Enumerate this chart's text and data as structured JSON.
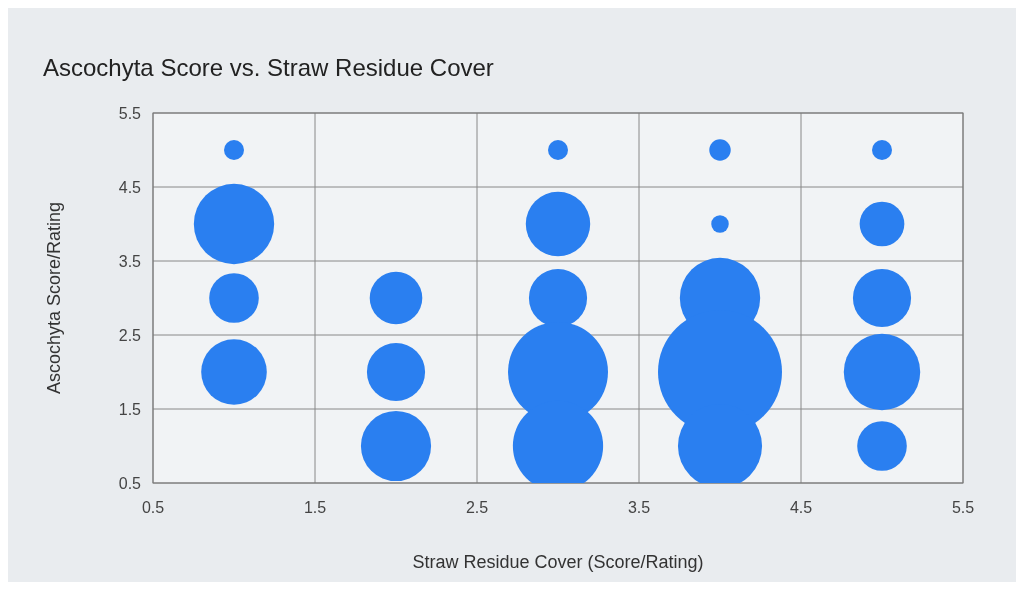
{
  "chart_data": {
    "type": "bubble",
    "title": "Ascochyta Score vs. Straw Residue Cover",
    "xlabel": "Straw Residue Cover (Score/Rating)",
    "ylabel": "Ascochyta Score/Rating",
    "x": [
      1,
      1,
      1,
      1,
      2,
      2,
      2,
      3,
      3,
      3,
      3,
      3,
      4,
      4,
      4,
      4,
      4,
      5,
      5,
      5,
      5,
      5
    ],
    "values": [
      5,
      4,
      3,
      2,
      3,
      2,
      1,
      5,
      4,
      3,
      2,
      1,
      5,
      4,
      3,
      2,
      1,
      5,
      4,
      3,
      2,
      1
    ],
    "sizes": [
      0.026,
      0.42,
      0.16,
      0.28,
      0.18,
      0.22,
      0.32,
      0.026,
      0.27,
      0.22,
      0.65,
      0.53,
      0.03,
      0.02,
      0.42,
      1,
      0.46,
      0.026,
      0.13,
      0.22,
      0.38,
      0.16
    ],
    "color": "#2a7ff0",
    "xlim": [
      0.5,
      5.5
    ],
    "xticks": [
      0.5,
      1.5,
      2.5,
      3.5,
      4.5,
      5.5
    ],
    "ylim": [
      0.5,
      5.5
    ],
    "yticks": [
      0.5,
      1.5,
      2.5,
      3.5,
      4.5,
      5.5
    ],
    "grid": true
  }
}
